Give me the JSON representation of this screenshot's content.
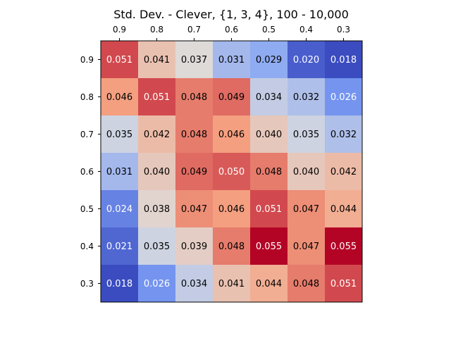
{
  "chart_data": {
    "type": "heatmap",
    "title": "Std. Dev. - Clever, {1, 3, 4}, 100 - 10,000",
    "x_ticks": [
      "0.9",
      "0.8",
      "0.7",
      "0.6",
      "0.5",
      "0.4",
      "0.3"
    ],
    "y_ticks": [
      "0.9",
      "0.8",
      "0.7",
      "0.6",
      "0.5",
      "0.4",
      "0.3"
    ],
    "x_axis_position": "top",
    "values": [
      [
        0.051,
        0.041,
        0.037,
        0.031,
        0.029,
        0.02,
        0.018
      ],
      [
        0.046,
        0.051,
        0.048,
        0.049,
        0.034,
        0.032,
        0.026
      ],
      [
        0.035,
        0.042,
        0.048,
        0.046,
        0.04,
        0.035,
        0.032
      ],
      [
        0.031,
        0.04,
        0.049,
        0.05,
        0.048,
        0.04,
        0.042
      ],
      [
        0.024,
        0.038,
        0.047,
        0.046,
        0.051,
        0.047,
        0.044
      ],
      [
        0.021,
        0.035,
        0.039,
        0.048,
        0.055,
        0.047,
        0.055
      ],
      [
        0.018,
        0.026,
        0.034,
        0.041,
        0.044,
        0.048,
        0.051
      ]
    ],
    "color_range": [
      0.018,
      0.055
    ],
    "colormap": "coolwarm",
    "grid": false,
    "legend": "none"
  }
}
